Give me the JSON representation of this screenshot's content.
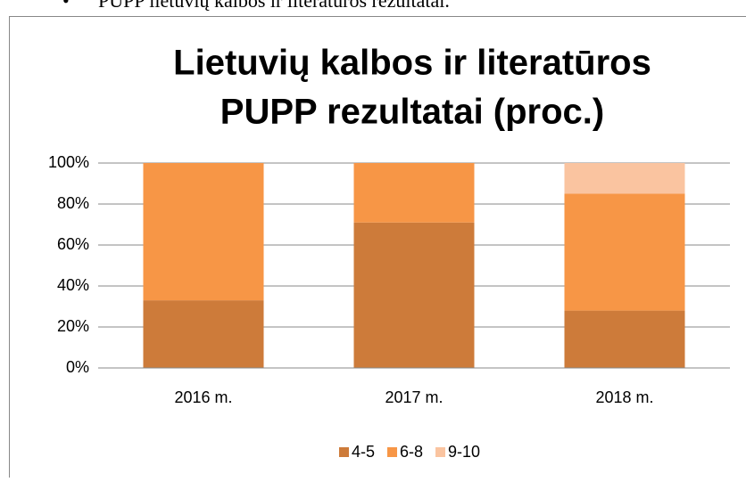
{
  "heading": "PUPP lietuvių kalbos ir literatūros rezultatai.",
  "chart_data": {
    "type": "stacked_bar",
    "title": [
      "Lietuvių kalbos ir literatūros",
      "PUPP rezultatai (proc.)"
    ],
    "categories": [
      "2016 m.",
      "2017 m.",
      "2018 m."
    ],
    "series": [
      {
        "name": "4-5",
        "color": "#cd7b3a",
        "values": [
          33,
          71,
          28
        ]
      },
      {
        "name": "6-8",
        "color": "#f79646",
        "values": [
          67,
          29,
          57
        ]
      },
      {
        "name": "9-10",
        "color": "#fac4a0",
        "values": [
          0,
          0,
          15
        ]
      }
    ],
    "ylim": [
      0,
      100
    ],
    "yticks": [
      {
        "value": 0,
        "label": "0%"
      },
      {
        "value": 20,
        "label": "20%"
      },
      {
        "value": 40,
        "label": "40%"
      },
      {
        "value": 60,
        "label": "60%"
      },
      {
        "value": 80,
        "label": "80%"
      },
      {
        "value": 100,
        "label": "100%"
      }
    ],
    "grid": true,
    "legend": "bottom"
  }
}
